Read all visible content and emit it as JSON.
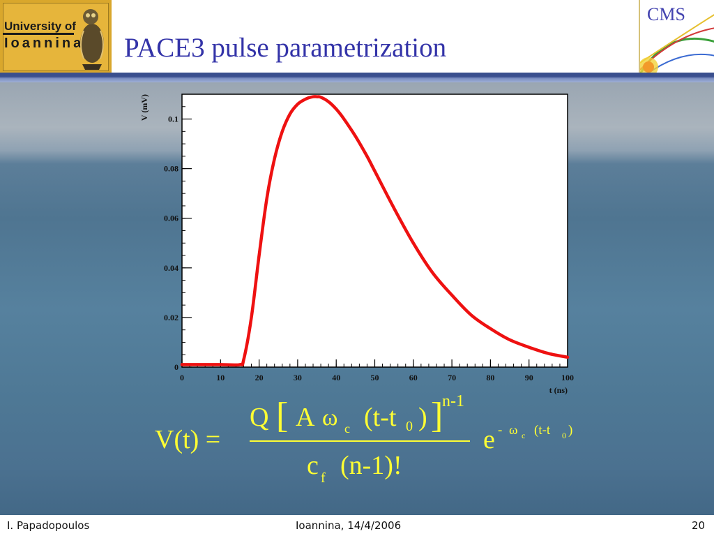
{
  "slide": {
    "title": "PACE3 pulse parametrization",
    "logo_left": {
      "line1": "University of",
      "line2": "Ioannina"
    },
    "logo_right": {
      "text": "CMS"
    }
  },
  "chart_data": {
    "type": "line",
    "xlabel": "t (ns)",
    "ylabel": "V (mV)",
    "xlim": [
      0,
      100
    ],
    "ylim": [
      0,
      0.11
    ],
    "x_ticks": [
      0,
      10,
      20,
      30,
      40,
      50,
      60,
      70,
      80,
      90,
      100
    ],
    "y_ticks": [
      0,
      0.02,
      0.04,
      0.06,
      0.08,
      0.1
    ],
    "x_tick_labels": [
      "0",
      "10",
      "20",
      "30",
      "40",
      "50",
      "60",
      "70",
      "80",
      "90",
      "100"
    ],
    "y_tick_labels": [
      "0",
      "0.02",
      "0.04",
      "0.06",
      "0.08",
      "0.1"
    ],
    "grid": false,
    "series": [
      {
        "color": "#ee1111",
        "x": [
          0,
          5,
          10,
          15,
          16,
          18,
          20,
          22,
          24,
          26,
          28,
          30,
          32,
          34,
          35,
          36,
          38,
          40,
          42,
          45,
          48,
          50,
          55,
          60,
          65,
          70,
          75,
          80,
          85,
          90,
          95,
          100
        ],
        "y": [
          0.001,
          0.001,
          0.001,
          0.001,
          0.003,
          0.02,
          0.045,
          0.068,
          0.084,
          0.095,
          0.102,
          0.106,
          0.108,
          0.109,
          0.109,
          0.1088,
          0.107,
          0.104,
          0.1,
          0.093,
          0.085,
          0.079,
          0.064,
          0.05,
          0.038,
          0.029,
          0.021,
          0.0155,
          0.011,
          0.008,
          0.0055,
          0.004
        ]
      }
    ]
  },
  "formula": {
    "lhs": "V(t) =",
    "numerator": {
      "Q": "Q",
      "bracket_open": "[",
      "A": "A",
      "omega": "ω",
      "omega_sub": "c",
      "paren_arg": "(t-t",
      "t_sub": "0",
      "paren_close": ")",
      "bracket_close": "]",
      "power": "n-1"
    },
    "denominator": {
      "c": "c",
      "c_sub": "f",
      "rest": "(n-1)!"
    },
    "exp_base": "e",
    "exp": {
      "minus": "-",
      "omega": "ω",
      "omega_sub": "c",
      "arg": "(t-t",
      "t_sub": "0",
      "close": ")"
    }
  },
  "footer": {
    "author": "I. Papadopoulos",
    "place_date": "Ioannina, 14/4/2006",
    "page": "20"
  },
  "colors": {
    "title": "#3333a8",
    "formula": "#ffff33",
    "curve": "#ee1111"
  }
}
